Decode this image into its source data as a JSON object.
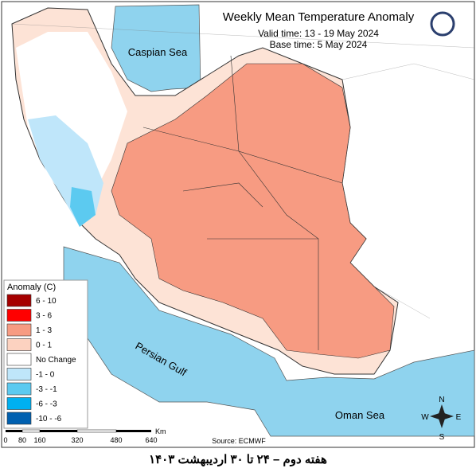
{
  "map": {
    "title": "Weekly Mean Temperature Anomaly",
    "valid_time": "Valid time: 13 - 19 May 2024",
    "base_time": "Base time: 5 May 2024",
    "labels": {
      "caspian": "Caspian Sea",
      "gulf": "Persian Gulf",
      "oman": "Oman Sea"
    },
    "legend": {
      "title": "Anomaly (C)",
      "items": [
        {
          "label": "6 - 10",
          "color": "#a50000"
        },
        {
          "label": "3 - 6",
          "color": "#ff0000"
        },
        {
          "label": "1 - 3",
          "color": "#f79b82"
        },
        {
          "label": "0 - 1",
          "color": "#fcd2c0"
        },
        {
          "label": "No Change",
          "color": "#ffffff"
        },
        {
          "label": "-1 - 0",
          "color": "#bfe6fa"
        },
        {
          "label": "-3 - -1",
          "color": "#5ccaf0"
        },
        {
          "label": "-6 - -3",
          "color": "#00b0f0"
        },
        {
          "label": "-10 - -6",
          "color": "#0060b0"
        }
      ]
    },
    "scale": {
      "ticks": [
        "0",
        "80",
        "160",
        "320",
        "480",
        "640"
      ],
      "unit": "Km"
    },
    "source": "Source: ECMWF",
    "compass": {
      "n": "N",
      "e": "E",
      "s": "S",
      "w": "W"
    },
    "caption": "هفته دوم – ۲۴ تا ۳۰ اردیبهشت ۱۴۰۳"
  }
}
